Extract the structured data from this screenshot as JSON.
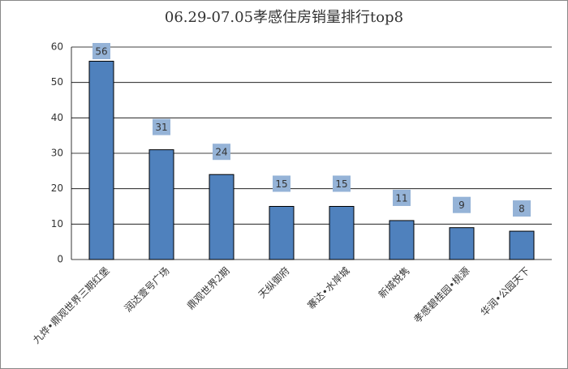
{
  "chart_data": {
    "type": "bar",
    "title": "06.29-07.05孝感住房销量排行top8",
    "categories": [
      "九烨•鼎观世界三期红堡",
      "润达壹号广场",
      "鼎观世界2期",
      "天纵御府",
      "寨达•水岸城",
      "新城悦隽",
      "孝感碧桂园•桃源",
      "华润•公园天下"
    ],
    "values": [
      56,
      31,
      24,
      15,
      15,
      11,
      9,
      8
    ],
    "color": "#4f81bd",
    "label_color": "#95b3d7",
    "ylim": [
      0,
      60
    ],
    "yticks": [
      0,
      10,
      20,
      30,
      40,
      50,
      60
    ],
    "grid": true
  }
}
